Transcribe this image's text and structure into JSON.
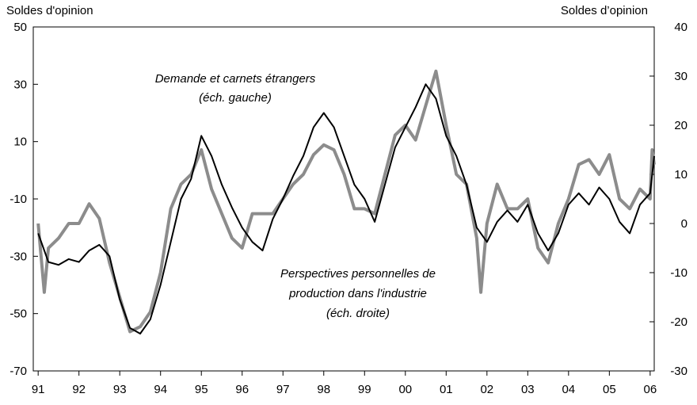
{
  "chart_data": {
    "type": "line",
    "y_label": "Soldes d'opinion",
    "y2_label": "Soldes d’opinion",
    "annotations": [
      "Demande et carnets étrangers",
      "(éch. gauche)",
      "Perspectives personnelles de",
      "production dans l'industrie",
      "(éch. droite)"
    ],
    "xlim": [
      1990.88,
      2006.1
    ],
    "xticks": [
      {
        "value": 1991,
        "label": "91"
      },
      {
        "value": 1992,
        "label": "92"
      },
      {
        "value": 1993,
        "label": "93"
      },
      {
        "value": 1994,
        "label": "94"
      },
      {
        "value": 1995,
        "label": "95"
      },
      {
        "value": 1996,
        "label": "96"
      },
      {
        "value": 1997,
        "label": "97"
      },
      {
        "value": 1998,
        "label": "98"
      },
      {
        "value": 1999,
        "label": "99"
      },
      {
        "value": 2000,
        "label": "00"
      },
      {
        "value": 2001,
        "label": "01"
      },
      {
        "value": 2002,
        "label": "02"
      },
      {
        "value": 2003,
        "label": "03"
      },
      {
        "value": 2004,
        "label": "04"
      },
      {
        "value": 2005,
        "label": "05"
      },
      {
        "value": 2006,
        "label": "06"
      }
    ],
    "ylim": [
      -70,
      50
    ],
    "yticks": [
      -70,
      -50,
      -30,
      -10,
      10,
      30,
      50
    ],
    "y2lim": [
      -30,
      40
    ],
    "y2ticks": [
      -30,
      -20,
      -10,
      0,
      10,
      20,
      30,
      40
    ],
    "series": [
      {
        "name": "Demande et carnets étrangers",
        "color": "#000000",
        "axis": "y",
        "x": [
          1991.0,
          1991.25,
          1991.5,
          1991.75,
          1992.0,
          1992.25,
          1992.5,
          1992.75,
          1993.0,
          1993.25,
          1993.5,
          1993.75,
          1994.0,
          1994.25,
          1994.5,
          1994.75,
          1995.0,
          1995.25,
          1995.5,
          1995.75,
          1996.0,
          1996.25,
          1996.5,
          1996.75,
          1997.0,
          1997.25,
          1997.5,
          1997.75,
          1998.0,
          1998.25,
          1998.5,
          1998.75,
          1999.0,
          1999.25,
          1999.5,
          1999.75,
          2000.0,
          2000.25,
          2000.5,
          2000.75,
          2001.0,
          2001.25,
          2001.5,
          2001.75,
          2002.0,
          2002.25,
          2002.5,
          2002.75,
          2003.0,
          2003.25,
          2003.5,
          2003.75,
          2004.0,
          2004.25,
          2004.5,
          2004.75,
          2005.0,
          2005.25,
          2005.5,
          2005.75,
          2006.0,
          2006.1
        ],
        "values": [
          -22,
          -32,
          -33,
          -31,
          -32,
          -28,
          -26,
          -30,
          -45,
          -55,
          -57,
          -52,
          -40,
          -25,
          -10,
          -3,
          12,
          5,
          -5,
          -13,
          -20,
          -25,
          -28,
          -17,
          -10,
          -2,
          5,
          15,
          20,
          15,
          5,
          -5,
          -10,
          -18,
          -5,
          8,
          15,
          22,
          30,
          25,
          12,
          5,
          -5,
          -20,
          -25,
          -18,
          -14,
          -18,
          -12,
          -22,
          -28,
          -22,
          -12,
          -8,
          -12,
          -6,
          -10,
          -18,
          -22,
          -12,
          -8,
          5
        ]
      },
      {
        "name": "Perspectives personnelles de production dans l'industrie",
        "color": "#8c8c8c",
        "axis": "y2",
        "x": [
          1991.0,
          1991.15,
          1991.25,
          1991.5,
          1991.75,
          1992.0,
          1992.25,
          1992.5,
          1992.75,
          1993.0,
          1993.25,
          1993.5,
          1993.75,
          1994.0,
          1994.25,
          1994.5,
          1994.75,
          1995.0,
          1995.25,
          1995.5,
          1995.75,
          1996.0,
          1996.25,
          1996.5,
          1996.75,
          1997.0,
          1997.25,
          1997.5,
          1997.75,
          1998.0,
          1998.25,
          1998.5,
          1998.75,
          1999.0,
          1999.25,
          1999.5,
          1999.75,
          2000.0,
          2000.25,
          2000.5,
          2000.75,
          2001.0,
          2001.25,
          2001.5,
          2001.75,
          2001.85,
          2002.0,
          2002.25,
          2002.5,
          2002.75,
          2003.0,
          2003.25,
          2003.5,
          2003.75,
          2004.0,
          2004.25,
          2004.5,
          2004.75,
          2005.0,
          2005.25,
          2005.5,
          2005.75,
          2006.0,
          2006.05,
          2006.1
        ],
        "values": [
          0,
          -14,
          -5,
          -3,
          0,
          0,
          4,
          1,
          -8,
          -15,
          -22,
          -21,
          -18,
          -10,
          3,
          8,
          10,
          15,
          7,
          2,
          -3,
          -5,
          2,
          2,
          2,
          5,
          8,
          10,
          14,
          16,
          15,
          10,
          3,
          3,
          2,
          10,
          18,
          20,
          17,
          24,
          31,
          20,
          10,
          8,
          -3,
          -14,
          0,
          8,
          3,
          3,
          5,
          -5,
          -8,
          0,
          5,
          12,
          13,
          10,
          14,
          5,
          3,
          7,
          5,
          15,
          12
        ]
      }
    ]
  }
}
